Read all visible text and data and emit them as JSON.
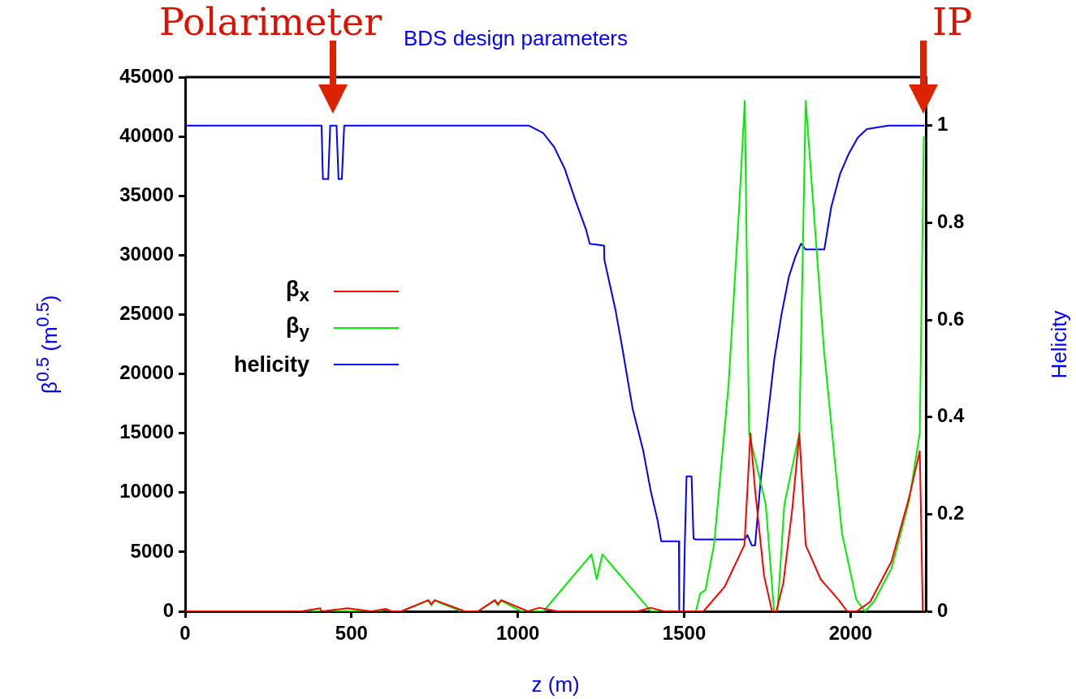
{
  "chart_data": {
    "type": "line",
    "title": "BDS design parameters",
    "xlabel": "z (m)",
    "ylabel": "β$^{0.5}$ (m$^{0.5}$)",
    "y2label": "Helicity",
    "annotations": [
      "Polarimeter",
      "IP"
    ],
    "xlim": [
      0,
      2226
    ],
    "xticks": [
      0,
      500,
      1000,
      1500,
      2000
    ],
    "ylim": [
      0,
      45000
    ],
    "yticks": [
      0,
      5000,
      10000,
      15000,
      20000,
      25000,
      30000,
      35000,
      40000,
      45000
    ],
    "y2lim": [
      0,
      1.1
    ],
    "y2ticks": [
      0,
      0.2,
      0.4,
      0.6,
      0.8,
      1
    ],
    "grid": false,
    "legend": "left",
    "marker": "none",
    "line_style": "solid",
    "series": [
      {
        "name": "β$_{x}$",
        "color": "#ff0000",
        "x": [
          0,
          350,
          406,
          410,
          488,
          560,
          604,
          620,
          650,
          731,
          740,
          750,
          840,
          880,
          931,
          940,
          950,
          1030,
          1064,
          1120,
          1360,
          1399,
          1440,
          1558,
          1622,
          1681,
          1699,
          1713,
          1740,
          1764,
          1777,
          1798,
          1825,
          1846,
          1865,
          1910,
          1963,
          1990,
          2018,
          2059,
          2123,
          2176,
          2208,
          2217
        ],
        "values": [
          0,
          0,
          250,
          0,
          250,
          0,
          200,
          0,
          0,
          950,
          600,
          950,
          0,
          0,
          950,
          600,
          950,
          0,
          300,
          0,
          0,
          300,
          0,
          0,
          2100,
          5600,
          15000,
          10200,
          3000,
          0,
          0,
          2400,
          8700,
          15000,
          5600,
          2700,
          1000,
          0,
          0,
          800,
          4200,
          9600,
          13500,
          0
        ]
      },
      {
        "name": "β$_{y}$",
        "color": "#00ee00",
        "x": [
          0,
          580,
          600,
          620,
          650,
          730,
          740,
          750,
          830,
          880,
          930,
          940,
          950,
          1010,
          1077,
          1221,
          1237,
          1254,
          1400,
          1490,
          1535,
          1548,
          1564,
          1590,
          1633,
          1665,
          1682,
          1695,
          1745,
          1770,
          1780,
          1801,
          1846,
          1865,
          1920,
          1974,
          2017,
          2043,
          2070,
          2123,
          2176,
          2208,
          2220
        ],
        "values": [
          0,
          0,
          150,
          0,
          0,
          900,
          500,
          900,
          0,
          0,
          900,
          500,
          900,
          0,
          0,
          4800,
          2700,
          4800,
          0,
          0,
          0,
          1500,
          1800,
          5700,
          19000,
          34000,
          43000,
          15000,
          9000,
          0,
          0,
          9000,
          15000,
          43000,
          22000,
          6600,
          1000,
          0,
          800,
          3600,
          9300,
          15000,
          40000
        ]
      },
      {
        "name": "helicity",
        "color": "#0000ff",
        "axis": "y2",
        "x": [
          0,
          410,
          414,
          430,
          436,
          455,
          461,
          471,
          478,
          1034,
          1076,
          1109,
          1141,
          1173,
          1205,
          1216,
          1259,
          1260,
          1293,
          1314,
          1345,
          1377,
          1399,
          1420,
          1431,
          1484,
          1485,
          1498,
          1502,
          1507,
          1522,
          1528,
          1534,
          1682,
          1690,
          1703,
          1713,
          1729,
          1750,
          1771,
          1792,
          1815,
          1834,
          1851,
          1865,
          1921,
          1942,
          1968,
          1995,
          2022,
          2049,
          2113,
          2222
        ],
        "values": [
          1,
          1,
          0.89,
          0.89,
          1,
          1,
          0.89,
          0.89,
          1,
          1,
          0.985,
          0.956,
          0.911,
          0.846,
          0.786,
          0.757,
          0.753,
          0.724,
          0.622,
          0.542,
          0.417,
          0.33,
          0.249,
          0.187,
          0.144,
          0.144,
          0,
          0,
          0.144,
          0.278,
          0.278,
          0.15,
          0.148,
          0.148,
          0.157,
          0.136,
          0.136,
          0.264,
          0.394,
          0.52,
          0.61,
          0.69,
          0.73,
          0.757,
          0.745,
          0.745,
          0.833,
          0.9,
          0.943,
          0.976,
          0.993,
          1,
          1
        ]
      }
    ]
  }
}
